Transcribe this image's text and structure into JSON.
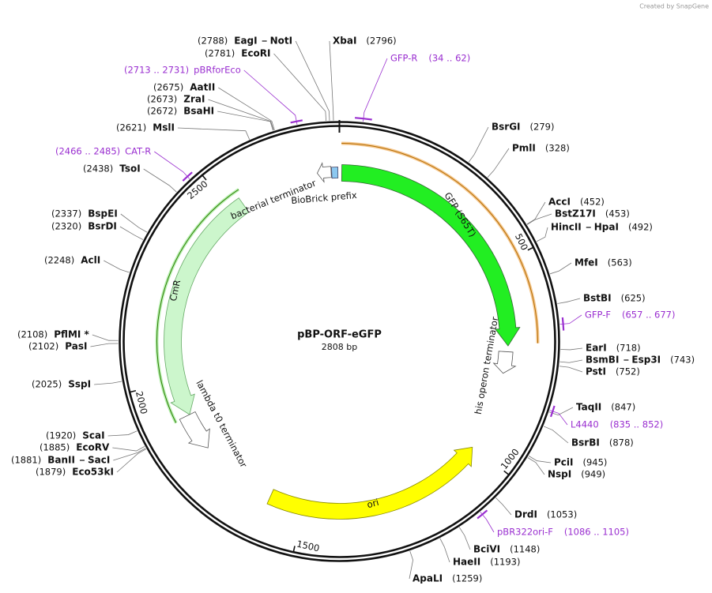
{
  "watermark": "Created by SnapGene",
  "map": {
    "name": "pBP-ORF-eGFP",
    "size": "2808 bp",
    "ticks": [
      500,
      1000,
      1500,
      2000,
      2500
    ]
  },
  "sites": [
    {
      "names": [
        "EagI",
        "NotI"
      ],
      "position": "(2788)"
    },
    {
      "names": [
        "EcoRI"
      ],
      "position": "(2781)"
    },
    {
      "names": [
        "XbaI"
      ],
      "position": "(2796)"
    },
    {
      "names": [
        "AatII"
      ],
      "position": "(2675)"
    },
    {
      "names": [
        "ZraI"
      ],
      "position": "(2673)"
    },
    {
      "names": [
        "BsaHI"
      ],
      "position": "(2672)"
    },
    {
      "names": [
        "MslI"
      ],
      "position": "(2621)"
    },
    {
      "names": [
        "TsoI"
      ],
      "position": "(2438)"
    },
    {
      "names": [
        "BspEI"
      ],
      "position": "(2337)"
    },
    {
      "names": [
        "BsrDI"
      ],
      "position": "(2320)"
    },
    {
      "names": [
        "AclI"
      ],
      "position": "(2248)"
    },
    {
      "names": [
        "PflMI *"
      ],
      "position": "(2108)"
    },
    {
      "names": [
        "PasI"
      ],
      "position": "(2102)"
    },
    {
      "names": [
        "SspI"
      ],
      "position": "(2025)"
    },
    {
      "names": [
        "ScaI"
      ],
      "position": "(1920)"
    },
    {
      "names": [
        "EcoRV"
      ],
      "position": "(1885)"
    },
    {
      "names": [
        "BanII",
        "SacI"
      ],
      "position": "(1881)"
    },
    {
      "names": [
        "Eco53kI"
      ],
      "position": "(1879)"
    },
    {
      "names": [
        "BsrGI"
      ],
      "position": "(279)"
    },
    {
      "names": [
        "PmlI"
      ],
      "position": "(328)"
    },
    {
      "names": [
        "AccI"
      ],
      "position": "(452)"
    },
    {
      "names": [
        "BstZ17I"
      ],
      "position": "(453)"
    },
    {
      "names": [
        "HincII",
        "HpaI"
      ],
      "position": "(492)"
    },
    {
      "names": [
        "MfeI"
      ],
      "position": "(563)"
    },
    {
      "names": [
        "BstBI"
      ],
      "position": "(625)"
    },
    {
      "names": [
        "EarI"
      ],
      "position": "(718)"
    },
    {
      "names": [
        "BsmBI",
        "Esp3I"
      ],
      "position": "(743)"
    },
    {
      "names": [
        "PstI"
      ],
      "position": "(752)"
    },
    {
      "names": [
        "TaqII"
      ],
      "position": "(847)"
    },
    {
      "names": [
        "BsrBI"
      ],
      "position": "(878)"
    },
    {
      "names": [
        "PciI"
      ],
      "position": "(945)"
    },
    {
      "names": [
        "NspI"
      ],
      "position": "(949)"
    },
    {
      "names": [
        "DrdI"
      ],
      "position": "(1053)"
    },
    {
      "names": [
        "BciVI"
      ],
      "position": "(1148)"
    },
    {
      "names": [
        "HaeII"
      ],
      "position": "(1193)"
    },
    {
      "names": [
        "ApaLI"
      ],
      "position": "(1259)"
    }
  ],
  "primers": [
    {
      "name": "GFP-R",
      "range": "(34 .. 62)"
    },
    {
      "name": "pBRforEco",
      "range": "(2713 .. 2731)"
    },
    {
      "name": "CAT-R",
      "range": "(2466 .. 2485)"
    },
    {
      "name": "GFP-F",
      "range": "(657 .. 677)"
    },
    {
      "name": "L4440",
      "range": "(835 .. 852)"
    },
    {
      "name": "pBR322ori-F",
      "range": "(1086 .. 1105)"
    }
  ],
  "features": [
    {
      "label": "GFP (S65T)"
    },
    {
      "label": "CmR"
    },
    {
      "label": "ori"
    },
    {
      "label": "bacterial terminator"
    },
    {
      "label": "BioBrick prefix"
    },
    {
      "label": "his operon terminator"
    },
    {
      "label": "lambda t0 terminator"
    }
  ]
}
